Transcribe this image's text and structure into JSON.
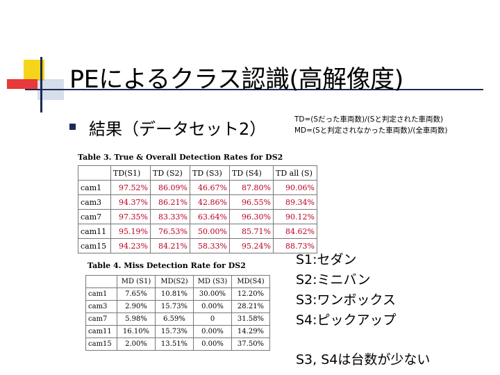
{
  "slide": {
    "title": "PEによるクラス認識(高解像度)",
    "bullet": "結果（データセット2）",
    "formula": {
      "td": "TD=(Sだった車両数)/(Sと判定された車両数)",
      "md": "MD=(Sと判定されなかった車両数)/(全車両数)"
    }
  },
  "table3": {
    "caption": "Table 3. True & Overall Detection Rates for DS2",
    "headers": [
      "",
      "TD(S1)",
      "TD (S2)",
      "TD (S3)",
      "TD (S4)",
      "TD  all (S)"
    ],
    "rows": [
      {
        "label": "cam1",
        "values": [
          "97.52%",
          "86.09%",
          "46.67%",
          "87.80%",
          "90.06%"
        ]
      },
      {
        "label": "cam3",
        "values": [
          "94.37%",
          "86.21%",
          "42.86%",
          "96.55%",
          "89.34%"
        ]
      },
      {
        "label": "cam7",
        "values": [
          "97.35%",
          "83.33%",
          "63.64%",
          "96.30%",
          "90.12%"
        ]
      },
      {
        "label": "cam11",
        "values": [
          "95.19%",
          "76.53%",
          "50.00%",
          "85.71%",
          "84.62%"
        ]
      },
      {
        "label": "cam15",
        "values": [
          "94.23%",
          "84.21%",
          "58.33%",
          "95.24%",
          "88.73%"
        ]
      }
    ]
  },
  "table4": {
    "caption": "Table 4. Miss Detection Rate for DS2",
    "headers": [
      "",
      "MD (S1)",
      "MD(S2)",
      "MD (S3)",
      "MD(S4)"
    ],
    "rows": [
      {
        "label": "cam1",
        "values": [
          "7.65%",
          "10.81%",
          "30.00%",
          "12.20%"
        ]
      },
      {
        "label": "cam3",
        "values": [
          "2.90%",
          "15.73%",
          "0.00%",
          "28.21%"
        ]
      },
      {
        "label": "cam7",
        "values": [
          "5.98%",
          "6.59%",
          "0",
          "31.58%"
        ]
      },
      {
        "label": "cam11",
        "values": [
          "16.10%",
          "15.73%",
          "0.00%",
          "14.29%"
        ]
      },
      {
        "label": "cam15",
        "values": [
          "2.00%",
          "13.51%",
          "0.00%",
          "37.50%"
        ]
      }
    ]
  },
  "legend": {
    "items": [
      "S1:セダン",
      "S2:ミニバン",
      "S3:ワンボックス",
      "S4:ピックアップ"
    ],
    "note": "S3, S4は台数が少ない"
  },
  "colors": {
    "accent_navy": "#1b2a55",
    "decor_yellow": "#f5d51a",
    "decor_red": "#e8393b",
    "highlight_red": "#b8001f"
  }
}
